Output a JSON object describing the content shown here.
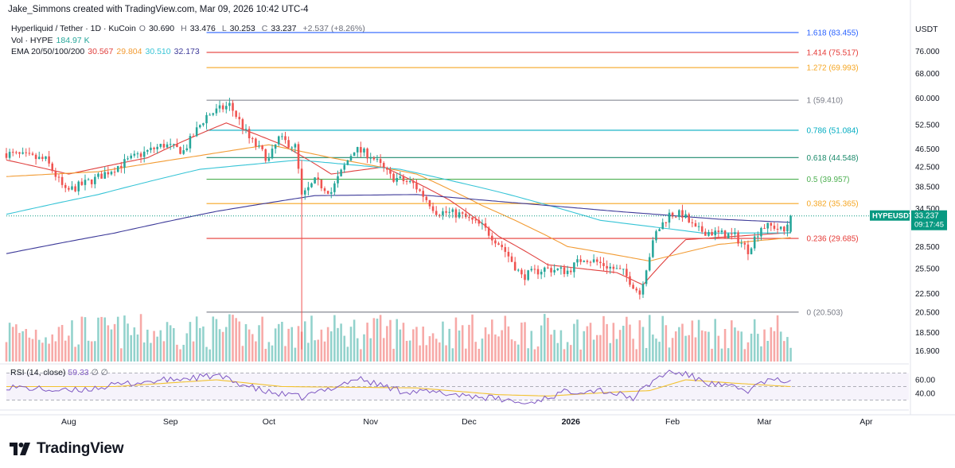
{
  "header": {
    "attribution": "Jake_Simmons created with TradingView.com, Mar 09, 2026 10:42 UTC-4"
  },
  "legend": {
    "symbol_line": "Hyperliquid / Tether · 1D · KuCoin",
    "ohlc": [
      {
        "k": "O",
        "v": "30.690"
      },
      {
        "k": "H",
        "v": "33.476"
      },
      {
        "k": "L",
        "v": "30.253"
      },
      {
        "k": "C",
        "v": "33.237"
      }
    ],
    "change": "+2.537 (+8.26%)",
    "vol_label": "Vol · HYPE",
    "vol_value": "184.97 K",
    "ema_label": "EMA 20/50/100/200",
    "ema_values": [
      {
        "v": "30.567",
        "color": "#e0413f"
      },
      {
        "v": "29.804",
        "color": "#f29b33"
      },
      {
        "v": "30.510",
        "color": "#36c4d6"
      },
      {
        "v": "32.173",
        "color": "#3d3a99"
      }
    ]
  },
  "rsi": {
    "label": "RSI (14, close)",
    "value": "59.33",
    "symbols": "∅ ∅"
  },
  "price_axis": {
    "currency": "USDT",
    "ticks": [
      "76.000",
      "68.000",
      "60.000",
      "52.500",
      "46.500",
      "42.500",
      "38.500",
      "34.500",
      "28.500",
      "25.500",
      "22.500",
      "20.500",
      "18.500",
      "16.900"
    ],
    "rsi_ticks": [
      "60.00",
      "40.00"
    ]
  },
  "time_axis": {
    "labels": [
      "Aug",
      "Sep",
      "Oct",
      "Nov",
      "Dec",
      "2026",
      "Feb",
      "Mar",
      "Apr"
    ]
  },
  "price_badge": {
    "symbol": "HYPEUSDT",
    "price": "33.237",
    "countdown": "09:17:45"
  },
  "brand": {
    "name": "TradingView"
  },
  "colors": {
    "up": "#26a69a",
    "down": "#ef5350",
    "badge": "#089981"
  },
  "chart_data": {
    "type": "candlestick",
    "title": "Hyperliquid / Tether · 1D · KuCoin",
    "x_range": [
      "Jul 13",
      "Apr 14"
    ],
    "y_scale": "log",
    "y_range": [
      16.0,
      90.0
    ],
    "fib_levels": [
      {
        "label": "1.618 (83.455)",
        "value": 83.455,
        "color": "#2962ff"
      },
      {
        "label": "1.414 (75.517)",
        "value": 75.517,
        "color": "#e53935"
      },
      {
        "label": "1.272 (69.993)",
        "value": 69.993,
        "color": "#f5a623"
      },
      {
        "label": "1 (59.410)",
        "value": 59.41,
        "color": "#787b86"
      },
      {
        "label": "0.786 (51.084)",
        "value": 51.084,
        "color": "#00acc1"
      },
      {
        "label": "0.618 (44.548)",
        "value": 44.548,
        "color": "#1b8a6b"
      },
      {
        "label": "0.5 (39.957)",
        "value": 39.957,
        "color": "#4caf50"
      },
      {
        "label": "0.382 (35.365)",
        "value": 35.365,
        "color": "#f5a623"
      },
      {
        "label": "0.236 (29.685)",
        "value": 29.685,
        "color": "#e53935"
      },
      {
        "label": "0 (20.503)",
        "value": 20.503,
        "color": "#787b86"
      }
    ],
    "price_anchors": [
      [
        "Jul 13",
        45.5
      ],
      [
        "Jul 25",
        44
      ],
      [
        "Jul 31",
        37.5
      ],
      [
        "Aug 9",
        40
      ],
      [
        "Aug 22",
        45
      ],
      [
        "Aug 30",
        47.5
      ],
      [
        "Sep 5",
        46
      ],
      [
        "Sep 12",
        55
      ],
      [
        "Sep 19",
        58
      ],
      [
        "Sep 25",
        49
      ],
      [
        "Oct 1",
        44
      ],
      [
        "Oct 4",
        49
      ],
      [
        "Oct 9",
        47
      ],
      [
        "Oct 11",
        36.5
      ],
      [
        "Oct 15",
        39.5
      ],
      [
        "Oct 20",
        37.5
      ],
      [
        "Oct 27",
        46.5
      ],
      [
        "Nov 1",
        45
      ],
      [
        "Nov 7",
        40.5
      ],
      [
        "Nov 14",
        39
      ],
      [
        "Nov 21",
        34
      ],
      [
        "Nov 28",
        33.5
      ],
      [
        "Dec 5",
        31.5
      ],
      [
        "Dec 11",
        28.5
      ],
      [
        "Dec 17",
        24.5
      ],
      [
        "Dec 24",
        25.5
      ],
      [
        "Dec 31",
        25.2
      ],
      [
        "Jan 5",
        27
      ],
      [
        "Jan 11",
        26
      ],
      [
        "Jan 17",
        25
      ],
      [
        "Jan 22",
        22.5
      ],
      [
        "Jan 27",
        30.5
      ],
      [
        "Jan 31",
        33.5
      ],
      [
        "Feb 4",
        33.5
      ],
      [
        "Feb 8",
        31
      ],
      [
        "Feb 14",
        30.5
      ],
      [
        "Feb 20",
        30
      ],
      [
        "Feb 24",
        28
      ],
      [
        "Feb 28",
        31.5
      ],
      [
        "Mar 4",
        31.5
      ],
      [
        "Mar 7",
        30.7
      ],
      [
        "Mar 9",
        33.237
      ]
    ],
    "ema_series": [
      {
        "name": "EMA 20",
        "color": "#e0413f",
        "points": [
          [
            "Jul 13",
            44
          ],
          [
            "Aug 1",
            41
          ],
          [
            "Aug 25",
            44.5
          ],
          [
            "Sep 18",
            53
          ],
          [
            "Oct 5",
            47.5
          ],
          [
            "Oct 20",
            41
          ],
          [
            "Nov 5",
            42.5
          ],
          [
            "Nov 25",
            36
          ],
          [
            "Dec 10",
            30
          ],
          [
            "Dec 25",
            26
          ],
          [
            "Jan 15",
            25
          ],
          [
            "Jan 23",
            23.5
          ],
          [
            "Feb 5",
            29.5
          ],
          [
            "Feb 20",
            30
          ],
          [
            "Mar 9",
            30.567
          ]
        ]
      },
      {
        "name": "EMA 50",
        "color": "#f29b33",
        "points": [
          [
            "Jul 13",
            40.5
          ],
          [
            "Aug 10",
            41.5
          ],
          [
            "Sep 10",
            45
          ],
          [
            "Oct 1",
            47.5
          ],
          [
            "Oct 20",
            44.5
          ],
          [
            "Nov 15",
            41
          ],
          [
            "Dec 5",
            35
          ],
          [
            "Dec 31",
            28.5
          ],
          [
            "Jan 25",
            26.5
          ],
          [
            "Feb 15",
            28.8
          ],
          [
            "Mar 9",
            29.804
          ]
        ]
      },
      {
        "name": "EMA 100",
        "color": "#36c4d6",
        "points": [
          [
            "Jul 13",
            33.5
          ],
          [
            "Aug 10",
            37
          ],
          [
            "Sep 10",
            42
          ],
          [
            "Oct 10",
            44
          ],
          [
            "Nov 10",
            42
          ],
          [
            "Dec 10",
            37.5
          ],
          [
            "Jan 10",
            32.5
          ],
          [
            "Feb 10",
            30.5
          ],
          [
            "Mar 9",
            30.51
          ]
        ]
      },
      {
        "name": "EMA 200",
        "color": "#3d3a99",
        "points": [
          [
            "Jul 13",
            27.5
          ],
          [
            "Aug 15",
            30.5
          ],
          [
            "Sep 15",
            34
          ],
          [
            "Oct 15",
            36.8
          ],
          [
            "Nov 15",
            37
          ],
          [
            "Dec 15",
            35.5
          ],
          [
            "Jan 15",
            34
          ],
          [
            "Feb 15",
            32.7
          ],
          [
            "Mar 9",
            32.173
          ]
        ]
      }
    ],
    "rsi_series": [
      {
        "name": "RSI",
        "color": "#7e57c2"
      },
      {
        "name": "RSI MA",
        "color": "#f2c230"
      }
    ],
    "rsi_range": [
      20,
      80
    ],
    "rsi_anchors": [
      [
        "Jul 13",
        50
      ],
      [
        "Aug 1",
        43
      ],
      [
        "Aug 20",
        55
      ],
      [
        "Sep 15",
        66
      ],
      [
        "Sep 30",
        42
      ],
      [
        "Oct 11",
        34
      ],
      [
        "Oct 20",
        48
      ],
      [
        "Oct 28",
        62
      ],
      [
        "Nov 10",
        44
      ],
      [
        "Nov 20",
        41
      ],
      [
        "Dec 1",
        37
      ],
      [
        "Dec 15",
        28
      ],
      [
        "Dec 18",
        24
      ],
      [
        "Dec 31",
        43
      ],
      [
        "Jan 10",
        45
      ],
      [
        "Jan 20",
        33
      ],
      [
        "Jan 27",
        62
      ],
      [
        "Jan 31",
        72
      ],
      [
        "Feb 5",
        68
      ],
      [
        "Feb 12",
        55
      ],
      [
        "Feb 24",
        44
      ],
      [
        "Mar 1",
        58
      ],
      [
        "Mar 9",
        59.33
      ]
    ],
    "rsi_ma_anchors": [
      [
        "Jul 13",
        50
      ],
      [
        "Aug 15",
        50
      ],
      [
        "Sep 15",
        60
      ],
      [
        "Oct 5",
        50
      ],
      [
        "Oct 25",
        49
      ],
      [
        "Nov 15",
        48
      ],
      [
        "Dec 10",
        38
      ],
      [
        "Dec 25",
        36
      ],
      [
        "Jan 15",
        42
      ],
      [
        "Jan 25",
        44
      ],
      [
        "Feb 5",
        60
      ],
      [
        "Feb 20",
        55
      ],
      [
        "Mar 9",
        50
      ]
    ]
  }
}
